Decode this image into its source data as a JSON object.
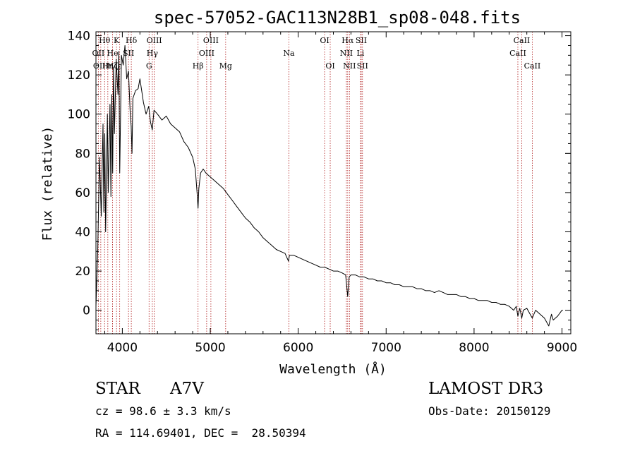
{
  "chart_data": {
    "type": "line",
    "title": "spec-57052-GAC113N28B1_sp08-048.fits",
    "xlabel": "Wavelength (Å)",
    "ylabel": "Flux (relative)",
    "xlim": [
      3700,
      9100
    ],
    "ylim": [
      -12,
      142
    ],
    "xticks": [
      {
        "value": 4000,
        "label": "4000"
      },
      {
        "value": 5000,
        "label": "5000"
      },
      {
        "value": 6000,
        "label": "6000"
      },
      {
        "value": 7000,
        "label": "7000"
      },
      {
        "value": 8000,
        "label": "8000"
      },
      {
        "value": 9000,
        "label": "9000"
      }
    ],
    "yticks": [
      {
        "value": 0,
        "label": "0"
      },
      {
        "value": 20,
        "label": "20"
      },
      {
        "value": 40,
        "label": "40"
      },
      {
        "value": 60,
        "label": "60"
      },
      {
        "value": 80,
        "label": "80"
      },
      {
        "value": 100,
        "label": "100"
      },
      {
        "value": 120,
        "label": "120"
      },
      {
        "value": 140,
        "label": "140"
      }
    ],
    "series": [
      {
        "name": "spectrum",
        "color": "#000000",
        "points": [
          [
            3700,
            2
          ],
          [
            3720,
            30
          ],
          [
            3740,
            78
          ],
          [
            3760,
            48
          ],
          [
            3780,
            95
          ],
          [
            3790,
            50
          ],
          [
            3800,
            90
          ],
          [
            3810,
            40
          ],
          [
            3830,
            100
          ],
          [
            3840,
            60
          ],
          [
            3860,
            105
          ],
          [
            3870,
            58
          ],
          [
            3880,
            110
          ],
          [
            3890,
            70
          ],
          [
            3900,
            124
          ],
          [
            3910,
            90
          ],
          [
            3930,
            128
          ],
          [
            3950,
            110
          ],
          [
            3960,
            132
          ],
          [
            3970,
            70
          ],
          [
            3990,
            130
          ],
          [
            4010,
            125
          ],
          [
            4030,
            135
          ],
          [
            4050,
            118
          ],
          [
            4070,
            122
          ],
          [
            4090,
            100
          ],
          [
            4100,
            94
          ],
          [
            4110,
            80
          ],
          [
            4120,
            108
          ],
          [
            4150,
            112
          ],
          [
            4180,
            113
          ],
          [
            4200,
            118
          ],
          [
            4240,
            106
          ],
          [
            4270,
            100
          ],
          [
            4300,
            104
          ],
          [
            4320,
            96
          ],
          [
            4340,
            92
          ],
          [
            4360,
            102
          ],
          [
            4400,
            100
          ],
          [
            4450,
            97
          ],
          [
            4500,
            99
          ],
          [
            4550,
            95
          ],
          [
            4600,
            93
          ],
          [
            4650,
            91
          ],
          [
            4700,
            86
          ],
          [
            4750,
            83
          ],
          [
            4800,
            78
          ],
          [
            4830,
            72
          ],
          [
            4850,
            60
          ],
          [
            4861,
            52
          ],
          [
            4870,
            62
          ],
          [
            4890,
            70
          ],
          [
            4920,
            72
          ],
          [
            4950,
            70
          ],
          [
            5000,
            68
          ],
          [
            5050,
            66
          ],
          [
            5100,
            64
          ],
          [
            5150,
            62
          ],
          [
            5200,
            59
          ],
          [
            5250,
            56
          ],
          [
            5300,
            53
          ],
          [
            5350,
            50
          ],
          [
            5400,
            47
          ],
          [
            5450,
            45
          ],
          [
            5500,
            42
          ],
          [
            5550,
            40
          ],
          [
            5600,
            37
          ],
          [
            5650,
            35
          ],
          [
            5700,
            33
          ],
          [
            5750,
            31
          ],
          [
            5800,
            30
          ],
          [
            5850,
            29
          ],
          [
            5890,
            25
          ],
          [
            5900,
            28
          ],
          [
            5950,
            28
          ],
          [
            6000,
            27
          ],
          [
            6050,
            26
          ],
          [
            6100,
            25
          ],
          [
            6150,
            24
          ],
          [
            6200,
            23
          ],
          [
            6250,
            22
          ],
          [
            6300,
            22
          ],
          [
            6350,
            21
          ],
          [
            6400,
            20
          ],
          [
            6450,
            20
          ],
          [
            6500,
            19
          ],
          [
            6540,
            18
          ],
          [
            6563,
            7
          ],
          [
            6580,
            17
          ],
          [
            6600,
            18
          ],
          [
            6650,
            18
          ],
          [
            6700,
            17
          ],
          [
            6750,
            17
          ],
          [
            6800,
            16
          ],
          [
            6850,
            16
          ],
          [
            6900,
            15
          ],
          [
            6950,
            15
          ],
          [
            7000,
            14
          ],
          [
            7050,
            14
          ],
          [
            7100,
            13
          ],
          [
            7150,
            13
          ],
          [
            7200,
            12
          ],
          [
            7250,
            12
          ],
          [
            7300,
            12
          ],
          [
            7350,
            11
          ],
          [
            7400,
            11
          ],
          [
            7450,
            10
          ],
          [
            7500,
            10
          ],
          [
            7550,
            9
          ],
          [
            7600,
            10
          ],
          [
            7650,
            9
          ],
          [
            7700,
            8
          ],
          [
            7750,
            8
          ],
          [
            7800,
            8
          ],
          [
            7850,
            7
          ],
          [
            7900,
            7
          ],
          [
            7950,
            6
          ],
          [
            8000,
            6
          ],
          [
            8050,
            5
          ],
          [
            8100,
            5
          ],
          [
            8150,
            5
          ],
          [
            8200,
            4
          ],
          [
            8250,
            4
          ],
          [
            8300,
            3
          ],
          [
            8350,
            3
          ],
          [
            8400,
            2
          ],
          [
            8450,
            0
          ],
          [
            8480,
            2
          ],
          [
            8498,
            -3
          ],
          [
            8520,
            1
          ],
          [
            8542,
            -4
          ],
          [
            8560,
            0
          ],
          [
            8600,
            1
          ],
          [
            8662,
            -4
          ],
          [
            8700,
            0
          ],
          [
            8750,
            -2
          ],
          [
            8800,
            -4
          ],
          [
            8850,
            -8
          ],
          [
            8880,
            -2
          ],
          [
            8900,
            -5
          ],
          [
            8950,
            -3
          ],
          [
            9000,
            0
          ],
          [
            9010,
            0
          ]
        ]
      }
    ],
    "lines": [
      {
        "name": "OII",
        "wavelength": 3727,
        "row": 1
      },
      {
        "name": "OIII",
        "wavelength": 3755,
        "row": 2
      },
      {
        "name": "Hθ",
        "wavelength": 3798,
        "row": 0
      },
      {
        "name": "Hη",
        "wavelength": 3835,
        "row": 2
      },
      {
        "name": "He",
        "wavelength": 3889,
        "row": 1
      },
      {
        "name": "ε",
        "wavelength": 3970,
        "row": 2
      },
      {
        "name": "K",
        "wavelength": 3934,
        "row": 0
      },
      {
        "name": "Hζ",
        "wavelength": 3889,
        "row": 2
      },
      {
        "name": "Hδ",
        "wavelength": 4102,
        "row": 0
      },
      {
        "name": "SII",
        "wavelength": 4070,
        "row": 1
      },
      {
        "name": "OIII",
        "wavelength": 4363,
        "row": 0
      },
      {
        "name": "Hγ",
        "wavelength": 4341,
        "row": 1
      },
      {
        "name": "G",
        "wavelength": 4304,
        "row": 2
      },
      {
        "name": "Hβ",
        "wavelength": 4861,
        "row": 2
      },
      {
        "name": "OIII",
        "wavelength": 4959,
        "row": 1
      },
      {
        "name": "OIII",
        "wavelength": 5007,
        "row": 0
      },
      {
        "name": "Mg",
        "wavelength": 5175,
        "row": 2
      },
      {
        "name": "Na",
        "wavelength": 5894,
        "row": 1
      },
      {
        "name": "OI",
        "wavelength": 6300,
        "row": 0
      },
      {
        "name": "OI",
        "wavelength": 6364,
        "row": 2
      },
      {
        "name": "NII",
        "wavelength": 6548,
        "row": 1
      },
      {
        "name": "Hα",
        "wavelength": 6563,
        "row": 0
      },
      {
        "name": "NII",
        "wavelength": 6583,
        "row": 2
      },
      {
        "name": "SII",
        "wavelength": 6717,
        "row": 0
      },
      {
        "name": "Li",
        "wavelength": 6708,
        "row": 1
      },
      {
        "name": "SII",
        "wavelength": 6731,
        "row": 2
      },
      {
        "name": "CaII",
        "wavelength": 8498,
        "row": 1
      },
      {
        "name": "CaII",
        "wavelength": 8542,
        "row": 0
      },
      {
        "name": "CaII",
        "wavelength": 8662,
        "row": 2
      }
    ]
  },
  "info": {
    "class": "STAR",
    "subclass": "A7V",
    "survey": "LAMOST DR3",
    "cz": "cz = 98.6 ± 3.3 km/s",
    "obs_date": "Obs-Date: 20150129",
    "coords": "RA = 114.69401, DEC =  28.50394"
  },
  "colors": {
    "line_marker": "#b22222",
    "spectrum": "#000000",
    "axes": "#000000"
  }
}
